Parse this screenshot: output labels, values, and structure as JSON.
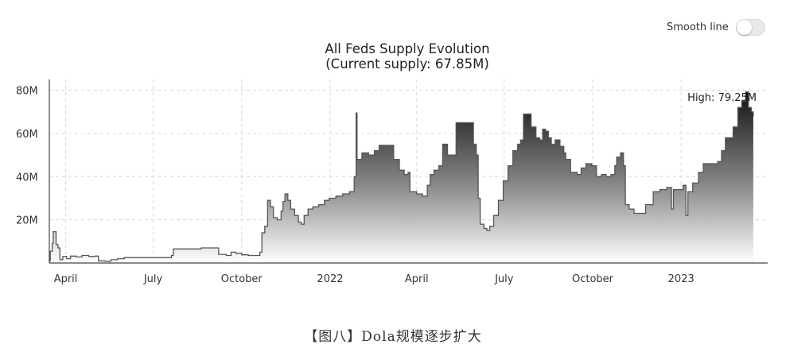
{
  "panel": {
    "title_line1": "All Feds Supply Evolution",
    "title_line2": "(Current supply: 67.85M)",
    "smooth_toggle": {
      "label": "Smooth line",
      "enabled": false
    }
  },
  "caption": "【图八】Dola规模逐步扩大",
  "chart_data": {
    "type": "area",
    "title": "All Feds Supply Evolution (Current supply: 67.85M)",
    "xlabel": "",
    "ylabel": "",
    "unit": "M",
    "x_range": [
      "2021-03-15",
      "2023-04-01"
    ],
    "ylim": [
      0,
      85
    ],
    "yticks": [
      20,
      40,
      60,
      80
    ],
    "ytick_labels": [
      "20M",
      "40M",
      "60M",
      "80M"
    ],
    "xticks": [
      {
        "date": "2021-04-01",
        "label": "April"
      },
      {
        "date": "2021-07-01",
        "label": "July"
      },
      {
        "date": "2021-10-01",
        "label": "October"
      },
      {
        "date": "2022-01-01",
        "label": "2022"
      },
      {
        "date": "2022-04-01",
        "label": "April"
      },
      {
        "date": "2022-07-01",
        "label": "July"
      },
      {
        "date": "2022-10-01",
        "label": "October"
      },
      {
        "date": "2023-01-01",
        "label": "2023"
      }
    ],
    "grid": true,
    "annotation": {
      "text": "High: 79.25M",
      "value": 79.25
    },
    "colors": {
      "line": "#555555",
      "fill_top": "#111111",
      "fill_bottom": "#ffffff",
      "grid": "#d8d8d8"
    },
    "series": [
      {
        "points": [
          [
            "2021-03-15",
            1.0
          ],
          [
            "2021-03-16",
            5.5
          ],
          [
            "2021-03-18",
            9.0
          ],
          [
            "2021-03-19",
            14.5
          ],
          [
            "2021-03-21",
            14.5
          ],
          [
            "2021-03-22",
            8.5
          ],
          [
            "2021-03-24",
            7.0
          ],
          [
            "2021-03-26",
            1.5
          ],
          [
            "2021-03-29",
            3.0
          ],
          [
            "2021-04-02",
            2.0
          ],
          [
            "2021-04-06",
            3.2
          ],
          [
            "2021-04-12",
            2.8
          ],
          [
            "2021-04-18",
            3.5
          ],
          [
            "2021-04-25",
            3.0
          ],
          [
            "2021-05-01",
            3.2
          ],
          [
            "2021-05-05",
            1.0
          ],
          [
            "2021-05-12",
            0.8
          ],
          [
            "2021-05-18",
            1.5
          ],
          [
            "2021-05-25",
            2.0
          ],
          [
            "2021-06-01",
            2.5
          ],
          [
            "2021-06-15",
            2.5
          ],
          [
            "2021-07-01",
            2.5
          ],
          [
            "2021-07-10",
            2.5
          ],
          [
            "2021-07-20",
            3.5
          ],
          [
            "2021-07-22",
            6.5
          ],
          [
            "2021-08-10",
            6.5
          ],
          [
            "2021-08-20",
            7.0
          ],
          [
            "2021-09-05",
            7.0
          ],
          [
            "2021-09-07",
            4.0
          ],
          [
            "2021-09-15",
            3.5
          ],
          [
            "2021-09-20",
            5.0
          ],
          [
            "2021-09-25",
            4.5
          ],
          [
            "2021-10-01",
            3.8
          ],
          [
            "2021-10-08",
            3.5
          ],
          [
            "2021-10-18",
            3.5
          ],
          [
            "2021-10-20",
            5.0
          ],
          [
            "2021-10-22",
            14.0
          ],
          [
            "2021-10-25",
            17.0
          ],
          [
            "2021-10-28",
            29.0
          ],
          [
            "2021-10-31",
            26.0
          ],
          [
            "2021-11-03",
            21.0
          ],
          [
            "2021-11-07",
            20.0
          ],
          [
            "2021-11-11",
            24.0
          ],
          [
            "2021-11-13",
            28.5
          ],
          [
            "2021-11-15",
            32.0
          ],
          [
            "2021-11-18",
            29.0
          ],
          [
            "2021-11-21",
            25.0
          ],
          [
            "2021-11-25",
            22.0
          ],
          [
            "2021-11-29",
            19.0
          ],
          [
            "2021-12-02",
            18.0
          ],
          [
            "2021-12-05",
            22.0
          ],
          [
            "2021-12-09",
            25.0
          ],
          [
            "2021-12-14",
            26.0
          ],
          [
            "2021-12-20",
            27.0
          ],
          [
            "2021-12-26",
            29.0
          ],
          [
            "2021-12-31",
            30.0
          ],
          [
            "2022-01-07",
            31.0
          ],
          [
            "2022-01-14",
            32.0
          ],
          [
            "2022-01-21",
            33.0
          ],
          [
            "2022-01-26",
            40.0
          ],
          [
            "2022-01-28",
            69.5
          ],
          [
            "2022-01-29",
            48.0
          ],
          [
            "2022-02-03",
            51.0
          ],
          [
            "2022-02-10",
            50.0
          ],
          [
            "2022-02-16",
            52.0
          ],
          [
            "2022-02-21",
            54.5
          ],
          [
            "2022-03-07",
            54.5
          ],
          [
            "2022-03-08",
            48.0
          ],
          [
            "2022-03-14",
            43.0
          ],
          [
            "2022-03-19",
            41.0
          ],
          [
            "2022-03-23",
            42.0
          ],
          [
            "2022-03-25",
            33.0
          ],
          [
            "2022-04-01",
            32.0
          ],
          [
            "2022-04-07",
            31.0
          ],
          [
            "2022-04-12",
            36.0
          ],
          [
            "2022-04-15",
            41.0
          ],
          [
            "2022-04-19",
            43.0
          ],
          [
            "2022-04-24",
            45.0
          ],
          [
            "2022-04-28",
            55.0
          ],
          [
            "2022-05-03",
            50.0
          ],
          [
            "2022-05-09",
            50.0
          ],
          [
            "2022-05-12",
            65.0
          ],
          [
            "2022-05-28",
            65.0
          ],
          [
            "2022-05-30",
            55.0
          ],
          [
            "2022-06-02",
            50.0
          ],
          [
            "2022-06-04",
            30.0
          ],
          [
            "2022-06-06",
            18.0
          ],
          [
            "2022-06-10",
            16.0
          ],
          [
            "2022-06-13",
            15.0
          ],
          [
            "2022-06-16",
            17.0
          ],
          [
            "2022-06-20",
            22.0
          ],
          [
            "2022-06-25",
            29.0
          ],
          [
            "2022-06-30",
            38.0
          ],
          [
            "2022-07-05",
            45.0
          ],
          [
            "2022-07-10",
            52.0
          ],
          [
            "2022-07-15",
            55.0
          ],
          [
            "2022-07-18",
            57.0
          ],
          [
            "2022-07-21",
            69.0
          ],
          [
            "2022-07-26",
            69.0
          ],
          [
            "2022-07-29",
            63.0
          ],
          [
            "2022-08-01",
            63.0
          ],
          [
            "2022-08-03",
            58.0
          ],
          [
            "2022-08-07",
            57.0
          ],
          [
            "2022-08-10",
            62.0
          ],
          [
            "2022-08-13",
            61.0
          ],
          [
            "2022-08-16",
            58.0
          ],
          [
            "2022-08-19",
            55.0
          ],
          [
            "2022-08-23",
            57.0
          ],
          [
            "2022-08-28",
            54.0
          ],
          [
            "2022-09-01",
            51.0
          ],
          [
            "2022-09-03",
            48.0
          ],
          [
            "2022-09-08",
            42.0
          ],
          [
            "2022-09-15",
            41.0
          ],
          [
            "2022-09-19",
            44.0
          ],
          [
            "2022-09-24",
            46.0
          ],
          [
            "2022-09-30",
            45.0
          ],
          [
            "2022-10-05",
            40.0
          ],
          [
            "2022-10-10",
            41.0
          ],
          [
            "2022-10-15",
            40.0
          ],
          [
            "2022-10-20",
            41.0
          ],
          [
            "2022-10-24",
            45.0
          ],
          [
            "2022-10-26",
            49.0
          ],
          [
            "2022-10-30",
            51.0
          ],
          [
            "2022-11-02",
            45.0
          ],
          [
            "2022-11-04",
            27.0
          ],
          [
            "2022-11-08",
            25.0
          ],
          [
            "2022-11-13",
            23.0
          ],
          [
            "2022-11-20",
            23.0
          ],
          [
            "2022-11-25",
            27.0
          ],
          [
            "2022-11-30",
            27.0
          ],
          [
            "2022-12-03",
            33.0
          ],
          [
            "2022-12-10",
            34.0
          ],
          [
            "2022-12-17",
            35.0
          ],
          [
            "2022-12-22",
            25.0
          ],
          [
            "2022-12-24",
            34.0
          ],
          [
            "2023-01-01",
            34.0
          ],
          [
            "2023-01-03",
            36.0
          ],
          [
            "2023-01-06",
            22.0
          ],
          [
            "2023-01-08",
            33.0
          ],
          [
            "2023-01-13",
            37.0
          ],
          [
            "2023-01-19",
            42.0
          ],
          [
            "2023-01-24",
            46.0
          ],
          [
            "2023-02-08",
            47.0
          ],
          [
            "2023-02-12",
            52.0
          ],
          [
            "2023-02-16",
            58.0
          ],
          [
            "2023-02-24",
            63.0
          ],
          [
            "2023-03-01",
            72.0
          ],
          [
            "2023-03-05",
            75.0
          ],
          [
            "2023-03-09",
            79.25
          ],
          [
            "2023-03-12",
            72.0
          ],
          [
            "2023-03-15",
            70.0
          ],
          [
            "2023-03-17",
            67.85
          ]
        ]
      }
    ]
  }
}
